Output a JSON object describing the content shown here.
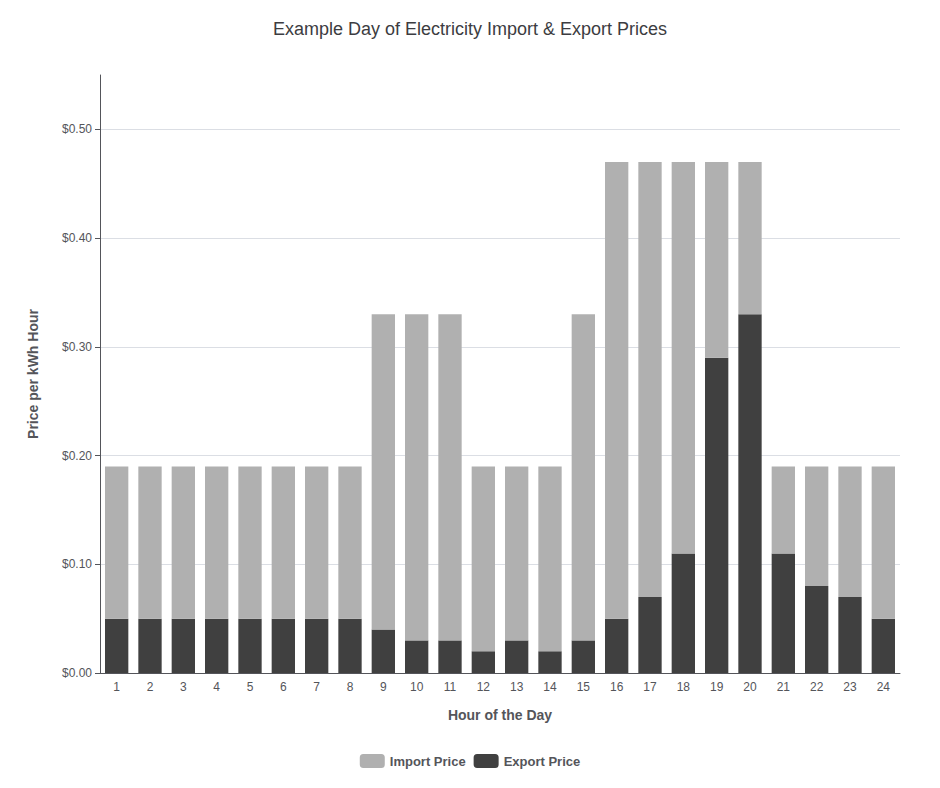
{
  "chart_data": {
    "type": "bar",
    "title": "Example Day of Electricity Import & Export Prices",
    "xlabel": "Hour of the Day",
    "ylabel": "Price per kWh Hour",
    "categories": [
      "1",
      "2",
      "3",
      "4",
      "5",
      "6",
      "7",
      "8",
      "9",
      "10",
      "11",
      "12",
      "13",
      "14",
      "15",
      "16",
      "17",
      "18",
      "19",
      "20",
      "21",
      "22",
      "23",
      "24"
    ],
    "stacked": true,
    "series": [
      {
        "name": "Export Price",
        "color": "#404040",
        "values": [
          0.05,
          0.05,
          0.05,
          0.05,
          0.05,
          0.05,
          0.05,
          0.05,
          0.04,
          0.03,
          0.03,
          0.02,
          0.03,
          0.02,
          0.03,
          0.05,
          0.07,
          0.11,
          0.29,
          0.33,
          0.11,
          0.08,
          0.07,
          0.05
        ]
      },
      {
        "name": "Import Price",
        "color": "#b0b0b0",
        "values": [
          0.14,
          0.14,
          0.14,
          0.14,
          0.14,
          0.14,
          0.14,
          0.14,
          0.29,
          0.3,
          0.3,
          0.17,
          0.16,
          0.17,
          0.3,
          0.42,
          0.4,
          0.36,
          0.18,
          0.14,
          0.08,
          0.11,
          0.12,
          0.14
        ]
      }
    ],
    "ylim": [
      0,
      0.55
    ],
    "yticks": [
      {
        "value": 0.0,
        "label": "$0.00"
      },
      {
        "value": 0.1,
        "label": "$0.10"
      },
      {
        "value": 0.2,
        "label": "$0.20"
      },
      {
        "value": 0.3,
        "label": "$0.30"
      },
      {
        "value": 0.4,
        "label": "$0.40"
      },
      {
        "value": 0.5,
        "label": "$0.50"
      }
    ],
    "grid": true,
    "legend": "bottom"
  }
}
